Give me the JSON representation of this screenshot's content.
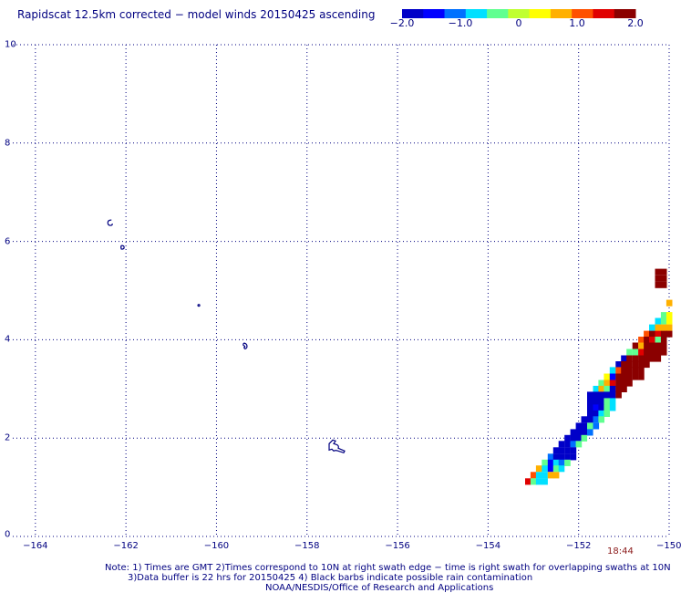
{
  "title": "Rapidscat 12.5km corrected − model winds 20150425 ascending",
  "colorbar": {
    "labels": [
      "−2.0",
      "−1.0",
      "0",
      "1.0",
      "2.0"
    ],
    "values": [
      -2.0,
      -1.0,
      0,
      1.0,
      2.0
    ],
    "min": -2.0,
    "max": 2.0,
    "colors": [
      "#0000c8",
      "#0000ff",
      "#0070ff",
      "#00e0ff",
      "#60ff90",
      "#c0ff30",
      "#ffff00",
      "#ffb000",
      "#ff5000",
      "#e00000",
      "#8b0000"
    ]
  },
  "map": {
    "lon_ticks": [
      "−164",
      "−162",
      "−160",
      "−158",
      "−156",
      "−154",
      "−152",
      "−150"
    ],
    "lat_ticks": [
      "0",
      "2",
      "4",
      "6",
      "8",
      "10"
    ],
    "lon_range": [
      -164.5,
      -150
    ],
    "lat_range": [
      0,
      10
    ],
    "grid": true,
    "gridline_color": "#000080",
    "islands": [
      {
        "name": "",
        "lon": -162.36,
        "lat": 6.38
      },
      {
        "name": "",
        "lon": -162.08,
        "lat": 5.88
      },
      {
        "name": "",
        "lon": -160.39,
        "lat": 4.7
      },
      {
        "name": "",
        "lon": -159.35,
        "lat": 3.86
      },
      {
        "name": "",
        "lon": -157.35,
        "lat": 1.85
      }
    ],
    "swath_cells": [
      [
        -150.25,
        5.38,
        1.9
      ],
      [
        -150.12,
        5.38,
        1.9
      ],
      [
        -150.25,
        5.25,
        1.9
      ],
      [
        -150.12,
        5.25,
        1.9
      ],
      [
        -150.25,
        5.12,
        1.9
      ],
      [
        -150.12,
        5.12,
        1.9
      ],
      [
        -150.0,
        4.75,
        0.9
      ],
      [
        -150.12,
        4.5,
        -0.5
      ],
      [
        -150.0,
        4.5,
        0.2
      ],
      [
        -150.25,
        4.38,
        -0.7
      ],
      [
        -150.12,
        4.38,
        -0.3
      ],
      [
        -150.0,
        4.38,
        0.5
      ],
      [
        -150.38,
        4.25,
        -0.6
      ],
      [
        -150.25,
        4.25,
        0.6
      ],
      [
        -150.12,
        4.25,
        0.7
      ],
      [
        -150.0,
        4.25,
        0.9
      ],
      [
        -150.5,
        4.12,
        1.2
      ],
      [
        -150.38,
        4.12,
        1.9
      ],
      [
        -150.25,
        4.12,
        1.6
      ],
      [
        -150.12,
        4.12,
        1.9
      ],
      [
        -150.0,
        4.12,
        1.9
      ],
      [
        -150.62,
        4.0,
        1.1
      ],
      [
        -150.5,
        4.0,
        1.9
      ],
      [
        -150.38,
        4.0,
        1.3
      ],
      [
        -150.25,
        4.0,
        -0.4
      ],
      [
        -150.12,
        4.0,
        1.9
      ],
      [
        -150.75,
        3.88,
        1.9
      ],
      [
        -150.62,
        3.88,
        0.8
      ],
      [
        -150.5,
        3.88,
        1.9
      ],
      [
        -150.38,
        3.88,
        1.9
      ],
      [
        -150.25,
        3.88,
        1.9
      ],
      [
        -150.12,
        3.88,
        1.9
      ],
      [
        -150.88,
        3.75,
        -0.4
      ],
      [
        -150.75,
        3.75,
        -0.5
      ],
      [
        -150.62,
        3.75,
        1.5
      ],
      [
        -150.5,
        3.75,
        1.9
      ],
      [
        -150.38,
        3.75,
        1.9
      ],
      [
        -150.25,
        3.75,
        1.9
      ],
      [
        -150.12,
        3.75,
        1.9
      ],
      [
        -151.0,
        3.62,
        -2.0
      ],
      [
        -150.88,
        3.62,
        1.9
      ],
      [
        -150.75,
        3.62,
        1.9
      ],
      [
        -150.62,
        3.62,
        1.9
      ],
      [
        -150.5,
        3.62,
        1.9
      ],
      [
        -150.38,
        3.62,
        1.9
      ],
      [
        -150.25,
        3.62,
        1.9
      ],
      [
        -151.12,
        3.5,
        -1.8
      ],
      [
        -151.0,
        3.5,
        1.9
      ],
      [
        -150.88,
        3.5,
        1.7
      ],
      [
        -150.75,
        3.5,
        1.9
      ],
      [
        -150.62,
        3.5,
        1.9
      ],
      [
        -150.5,
        3.5,
        1.9
      ],
      [
        -151.25,
        3.38,
        -0.6
      ],
      [
        -151.12,
        3.38,
        1.2
      ],
      [
        -151.0,
        3.38,
        1.9
      ],
      [
        -150.88,
        3.38,
        1.9
      ],
      [
        -150.75,
        3.38,
        1.9
      ],
      [
        -150.62,
        3.38,
        1.9
      ],
      [
        -151.38,
        3.25,
        0.4
      ],
      [
        -151.25,
        3.25,
        -1.6
      ],
      [
        -151.12,
        3.25,
        1.9
      ],
      [
        -151.0,
        3.25,
        1.9
      ],
      [
        -150.88,
        3.25,
        1.9
      ],
      [
        -150.75,
        3.25,
        1.9
      ],
      [
        -150.62,
        3.25,
        1.9
      ],
      [
        -151.5,
        3.12,
        -0.5
      ],
      [
        -151.38,
        3.12,
        0.6
      ],
      [
        -151.25,
        3.12,
        1.5
      ],
      [
        -151.12,
        3.12,
        1.9
      ],
      [
        -151.0,
        3.12,
        1.9
      ],
      [
        -150.88,
        3.12,
        1.9
      ],
      [
        -151.62,
        3.0,
        -0.7
      ],
      [
        -151.5,
        3.0,
        0.7
      ],
      [
        -151.38,
        3.0,
        -0.5
      ],
      [
        -151.25,
        3.0,
        -2.0
      ],
      [
        -151.12,
        3.0,
        1.9
      ],
      [
        -151.0,
        3.0,
        1.9
      ],
      [
        -151.75,
        2.88,
        -1.9
      ],
      [
        -151.62,
        2.88,
        -1.8
      ],
      [
        -151.5,
        2.88,
        -1.9
      ],
      [
        -151.38,
        2.88,
        -2.0
      ],
      [
        -151.25,
        2.88,
        -1.9
      ],
      [
        -151.12,
        2.88,
        1.9
      ],
      [
        -151.75,
        2.75,
        -1.9
      ],
      [
        -151.62,
        2.75,
        -2.0
      ],
      [
        -151.5,
        2.75,
        -1.8
      ],
      [
        -151.38,
        2.75,
        -0.5
      ],
      [
        -151.25,
        2.75,
        -0.7
      ],
      [
        -151.75,
        2.62,
        -2.0
      ],
      [
        -151.62,
        2.62,
        -1.4
      ],
      [
        -151.5,
        2.62,
        -1.9
      ],
      [
        -151.38,
        2.62,
        -0.3
      ],
      [
        -151.25,
        2.62,
        -0.6
      ],
      [
        -151.75,
        2.5,
        -1.9
      ],
      [
        -151.62,
        2.5,
        -1.8
      ],
      [
        -151.5,
        2.5,
        -0.6
      ],
      [
        -151.38,
        2.5,
        -0.4
      ],
      [
        -151.88,
        2.38,
        -1.9
      ],
      [
        -151.75,
        2.38,
        -2.0
      ],
      [
        -151.62,
        2.38,
        -1.2
      ],
      [
        -151.5,
        2.38,
        -0.5
      ],
      [
        -152.0,
        2.25,
        -1.9
      ],
      [
        -151.88,
        2.25,
        -2.0
      ],
      [
        -151.75,
        2.25,
        -0.4
      ],
      [
        -151.62,
        2.25,
        -1.0
      ],
      [
        -152.12,
        2.12,
        -1.9
      ],
      [
        -152.0,
        2.12,
        -2.0
      ],
      [
        -151.88,
        2.12,
        -1.9
      ],
      [
        -151.75,
        2.12,
        -1.0
      ],
      [
        -152.25,
        2.0,
        -2.0
      ],
      [
        -152.12,
        2.0,
        -1.9
      ],
      [
        -152.0,
        2.0,
        -1.9
      ],
      [
        -151.88,
        2.0,
        -0.5
      ],
      [
        -152.38,
        1.88,
        -1.9
      ],
      [
        -152.25,
        1.88,
        -2.0
      ],
      [
        -152.12,
        1.88,
        -1.0
      ],
      [
        -152.0,
        1.88,
        -0.4
      ],
      [
        -152.5,
        1.75,
        -1.8
      ],
      [
        -152.38,
        1.75,
        -1.9
      ],
      [
        -152.25,
        1.75,
        -1.9
      ],
      [
        -152.12,
        1.75,
        -1.7
      ],
      [
        -152.62,
        1.62,
        -1.2
      ],
      [
        -152.5,
        1.62,
        -1.9
      ],
      [
        -152.38,
        1.62,
        -2.0
      ],
      [
        -152.25,
        1.62,
        -1.9
      ],
      [
        -152.12,
        1.62,
        -1.9
      ],
      [
        -152.75,
        1.5,
        -0.5
      ],
      [
        -152.62,
        1.5,
        -1.3
      ],
      [
        -152.5,
        1.5,
        -0.6
      ],
      [
        -152.38,
        1.5,
        -1.0
      ],
      [
        -152.25,
        1.5,
        -0.4
      ],
      [
        -152.88,
        1.38,
        0.6
      ],
      [
        -152.75,
        1.38,
        -0.6
      ],
      [
        -152.62,
        1.38,
        -1.4
      ],
      [
        -152.5,
        1.38,
        -0.5
      ],
      [
        -152.38,
        1.38,
        -0.7
      ],
      [
        -153.0,
        1.25,
        1.2
      ],
      [
        -152.88,
        1.25,
        -0.6
      ],
      [
        -152.75,
        1.25,
        -0.7
      ],
      [
        -152.62,
        1.25,
        0.9
      ],
      [
        -152.5,
        1.25,
        0.7
      ],
      [
        -153.12,
        1.12,
        1.6
      ],
      [
        -153.0,
        1.12,
        -0.4
      ],
      [
        -152.88,
        1.12,
        -0.8
      ],
      [
        -152.75,
        1.12,
        -0.6
      ]
    ]
  },
  "time_label": "18:44",
  "notes": [
    "Note: 1) Times are GMT 2)Times correspond to 10N at right swath edge − time is right swath for overlapping swaths at 10N",
    "3)Data buffer is 22 hrs for 20150425 4) Black barbs indicate possible rain contamination",
    "NOAA/NESDIS/Office of Research and Applications"
  ]
}
